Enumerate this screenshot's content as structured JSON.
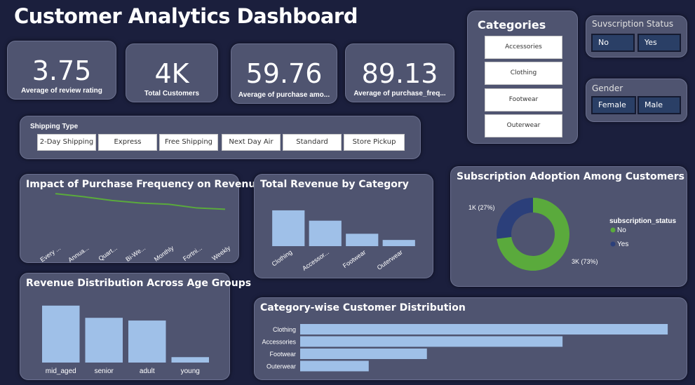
{
  "header": {
    "title": "Customer Analytics Dashboard"
  },
  "kpis": [
    {
      "value": "3.75",
      "label": "Average of review rating"
    },
    {
      "value": "4K",
      "label": "Total Customers"
    },
    {
      "value": "59.76",
      "label": "Average of purchase amo..."
    },
    {
      "value": "89.13",
      "label": "Average of purchase_freq..."
    }
  ],
  "shipping": {
    "label": "Shipping Type",
    "options": [
      "2-Day Shipping",
      "Express",
      "Free Shipping",
      "Next Day Air",
      "Standard",
      "Store Pickup"
    ]
  },
  "categories_slicer": {
    "label": "Categories",
    "options": [
      "Accessories",
      "Clothing",
      "Footwear",
      "Outerwear"
    ]
  },
  "subscription_slicer": {
    "label": "Suvscription Status",
    "options": [
      "No",
      "Yes"
    ]
  },
  "gender_slicer": {
    "label": "Gender",
    "options": [
      "Female",
      "Male"
    ]
  },
  "colors": {
    "background": "#1b1f3d",
    "panel": "#4f5470",
    "bar": "#9fc0e8",
    "line": "#5aaa3c",
    "donut_no": "#5aaa3c",
    "donut_yes": "#2b3f7a"
  },
  "chart_data": [
    {
      "type": "line",
      "title": "Impact of Purchase Frequency on Revenue",
      "categories": [
        "Every ...",
        "Annua...",
        "Quart...",
        "Bi-We...",
        "Monthly",
        "Fortni...",
        "Weekly"
      ],
      "values": [
        41,
        38.5,
        35.5,
        33.5,
        32.5,
        29.5,
        28.5
      ],
      "ylim": [
        0,
        45
      ]
    },
    {
      "type": "bar",
      "title": "Total Revenue by Category",
      "categories": [
        "Clothing",
        "Accessor...",
        "Footwear",
        "Outerwear"
      ],
      "values": [
        104,
        74,
        36,
        18
      ],
      "ylim": [
        0,
        110
      ]
    },
    {
      "type": "pie",
      "title": "Subscription Adoption Among Customers",
      "legend_title": "subscription_status",
      "legend_position": "right",
      "slices": [
        {
          "name": "No",
          "value": 73,
          "label": "3K (73%)"
        },
        {
          "name": "Yes",
          "value": 27,
          "label": "1K (27%)"
        }
      ]
    },
    {
      "type": "bar",
      "title": "Revenue Distribution Across Age Groups",
      "categories": [
        "mid_aged",
        "senior",
        "adult",
        "young"
      ],
      "values": [
        84,
        66,
        62,
        8
      ],
      "ylim": [
        0,
        90
      ]
    },
    {
      "type": "bar",
      "orientation": "horizontal",
      "title": "Category-wise Customer Distribution",
      "categories": [
        "Clothing",
        "Accessories",
        "Footwear",
        "Outerwear"
      ],
      "values": [
        1737,
        1240,
        599,
        324
      ],
      "xlim": [
        0,
        1740
      ]
    }
  ]
}
